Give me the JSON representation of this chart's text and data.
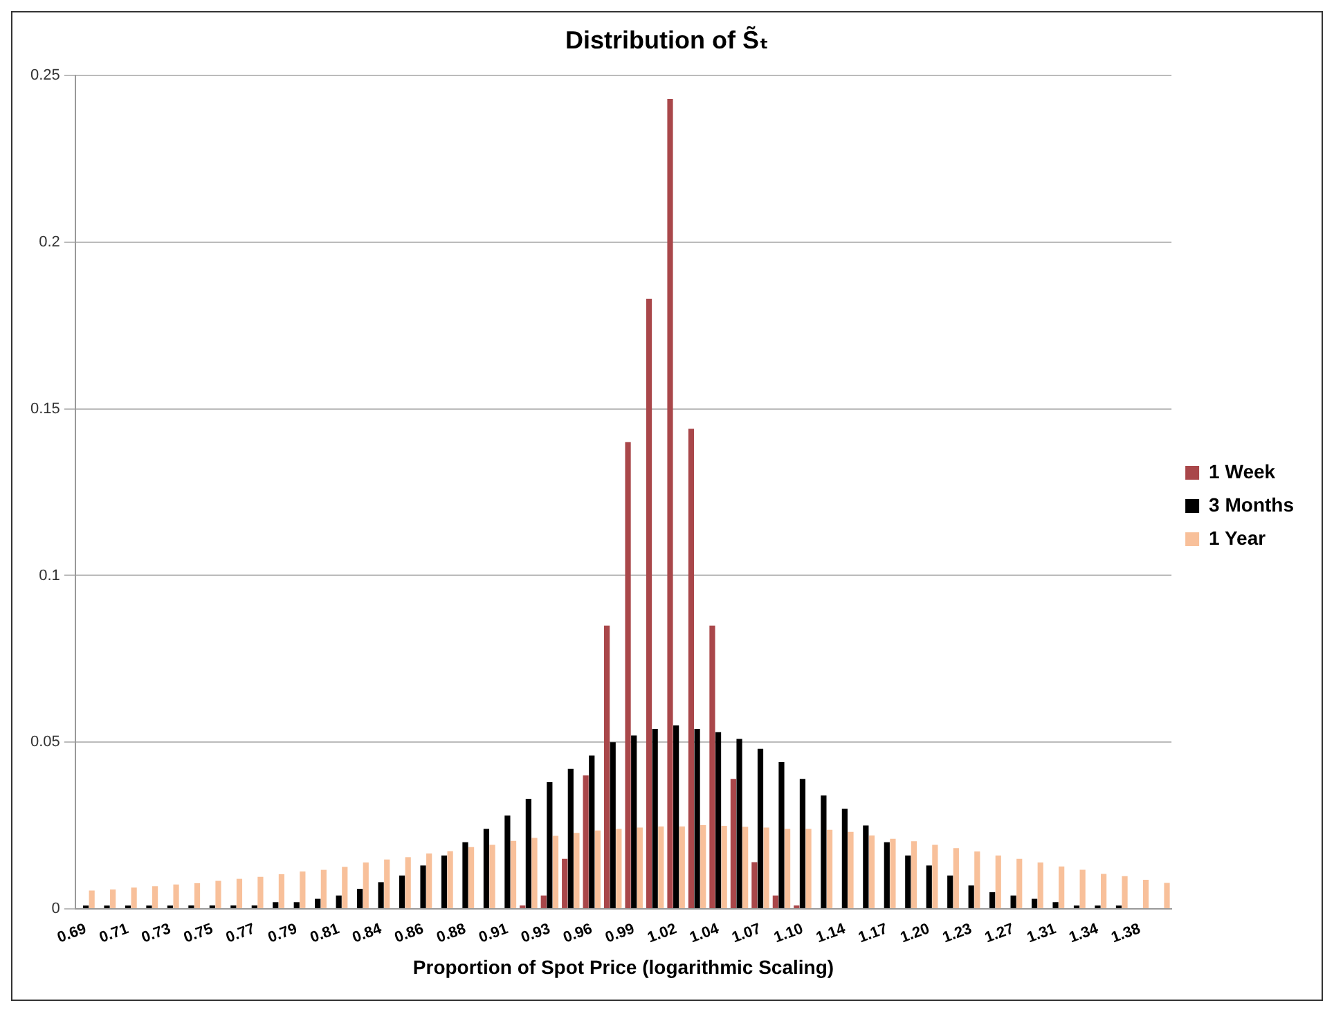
{
  "chart_data": {
    "type": "bar",
    "title": "Distribution of S̃ₜ",
    "xlabel": "Proportion of Spot Price (logarithmic Scaling)",
    "categories": [
      "0.69",
      null,
      "0.71",
      null,
      "0.73",
      null,
      "0.75",
      null,
      "0.77",
      null,
      "0.79",
      null,
      "0.81",
      null,
      "0.84",
      null,
      "0.86",
      null,
      "0.88",
      null,
      "0.91",
      null,
      "0.93",
      null,
      "0.96",
      null,
      "0.99",
      null,
      "1.02",
      null,
      "1.04",
      null,
      "1.07",
      null,
      "1.10",
      null,
      "1.14",
      null,
      "1.17",
      null,
      "1.20",
      null,
      "1.23",
      null,
      "1.27",
      null,
      "1.31",
      null,
      "1.34",
      null,
      "1.38",
      null
    ],
    "series": [
      {
        "name": "1 Week",
        "color": "#a9474a",
        "values": [
          0,
          0,
          0,
          0,
          0,
          0,
          0,
          0,
          0,
          0,
          0,
          0,
          0,
          0,
          0,
          0,
          0,
          0,
          0,
          0,
          0,
          0.001,
          0.004,
          0.015,
          0.04,
          0.085,
          0.14,
          0.183,
          0.243,
          0.144,
          0.085,
          0.039,
          0.014,
          0.004,
          0.001,
          0,
          0,
          0,
          0,
          0,
          0,
          0,
          0,
          0,
          0,
          0,
          0,
          0,
          0,
          0,
          0,
          0
        ]
      },
      {
        "name": "3 Months",
        "color": "#000000",
        "values": [
          0.001,
          0.001,
          0.001,
          0.001,
          0.001,
          0.001,
          0.001,
          0.001,
          0.001,
          0.002,
          0.002,
          0.003,
          0.004,
          0.006,
          0.008,
          0.01,
          0.013,
          0.016,
          0.02,
          0.024,
          0.028,
          0.033,
          0.038,
          0.042,
          0.046,
          0.05,
          0.052,
          0.054,
          0.055,
          0.054,
          0.053,
          0.051,
          0.048,
          0.044,
          0.039,
          0.034,
          0.03,
          0.025,
          0.02,
          0.016,
          0.013,
          0.01,
          0.007,
          0.005,
          0.004,
          0.003,
          0.002,
          0.001,
          0.001,
          0.001,
          0,
          0
        ]
      },
      {
        "name": "1 Year",
        "color": "#f8c09a",
        "values": [
          0.0055,
          0.0058,
          0.0064,
          0.0068,
          0.0073,
          0.0077,
          0.0084,
          0.009,
          0.0096,
          0.0104,
          0.0112,
          0.0117,
          0.0126,
          0.0139,
          0.0148,
          0.0155,
          0.0166,
          0.0173,
          0.0185,
          0.0192,
          0.0204,
          0.0213,
          0.0219,
          0.0228,
          0.0235,
          0.024,
          0.0244,
          0.0247,
          0.0247,
          0.0251,
          0.0249,
          0.0246,
          0.0244,
          0.024,
          0.024,
          0.0237,
          0.0231,
          0.022,
          0.021,
          0.0203,
          0.0192,
          0.0182,
          0.0172,
          0.016,
          0.015,
          0.0139,
          0.0127,
          0.0117,
          0.0105,
          0.0098,
          0.0087,
          0.0078
        ]
      }
    ],
    "ylim": [
      0,
      0.25
    ],
    "yticks": [
      0,
      0.05,
      0.1,
      0.15,
      0.2,
      0.25
    ],
    "grid": "y",
    "legend": "right"
  }
}
